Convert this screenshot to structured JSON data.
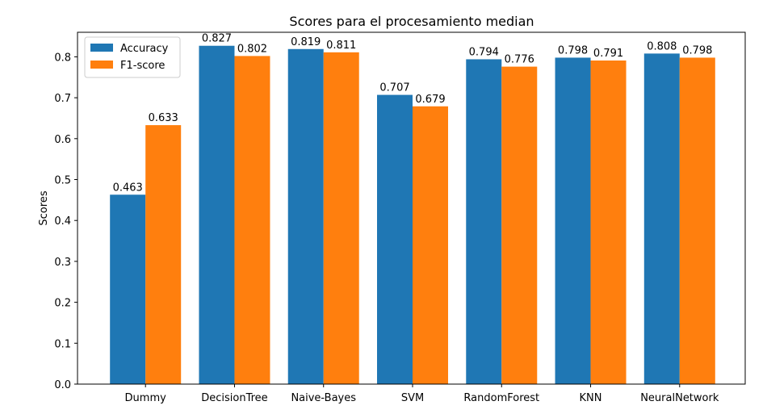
{
  "chart_data": {
    "type": "bar",
    "title": "Scores para el procesamiento median",
    "xlabel": "",
    "ylabel": "Scores",
    "ylim": [
      0,
      0.86
    ],
    "yticks": [
      "0.0",
      "0.1",
      "0.2",
      "0.3",
      "0.4",
      "0.5",
      "0.6",
      "0.7",
      "0.8"
    ],
    "categories": [
      "Dummy",
      "DecisionTree",
      "Naive-Bayes",
      "SVM",
      "RandomForest",
      "KNN",
      "NeuralNetwork"
    ],
    "series": [
      {
        "name": "Accuracy",
        "color": "#1f77b4",
        "values": [
          0.463,
          0.827,
          0.819,
          0.707,
          0.794,
          0.798,
          0.808
        ],
        "labels": [
          "0.463",
          "0.827",
          "0.819",
          "0.707",
          "0.794",
          "0.798",
          "0.808"
        ]
      },
      {
        "name": "F1-score",
        "color": "#ff7f0e",
        "values": [
          0.633,
          0.802,
          0.811,
          0.679,
          0.776,
          0.791,
          0.798
        ],
        "labels": [
          "0.633",
          "0.802",
          "0.811",
          "0.679",
          "0.776",
          "0.791",
          "0.798"
        ]
      }
    ],
    "legend_position": "top-left",
    "grid": false
  }
}
